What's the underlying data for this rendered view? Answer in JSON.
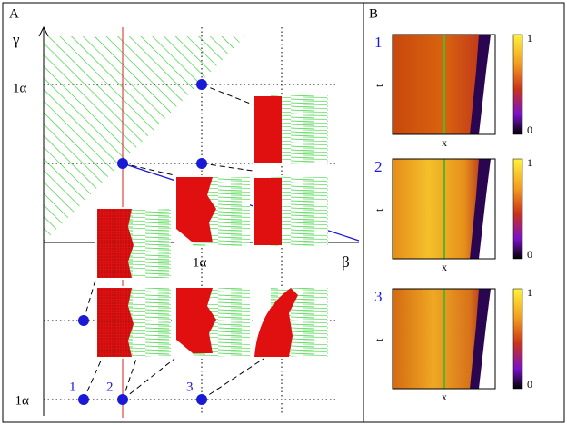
{
  "panel_a": {
    "label": "A",
    "y_axis_label": "γ",
    "x_axis_label": "β",
    "y_ticks": [
      "1α",
      "−1α"
    ],
    "x_ticks": [
      "1α"
    ],
    "points": [
      "1",
      "2",
      "3"
    ]
  },
  "panel_b": {
    "label": "B",
    "plots": [
      {
        "label": "1",
        "y_label": "t",
        "x_label": "x",
        "colorbar_ticks": [
          1,
          0
        ]
      },
      {
        "label": "2",
        "y_label": "t",
        "x_label": "x",
        "colorbar_ticks": [
          1,
          0
        ]
      },
      {
        "label": "3",
        "y_label": "t",
        "x_label": "x",
        "colorbar_ticks": [
          1,
          0
        ]
      }
    ]
  }
}
